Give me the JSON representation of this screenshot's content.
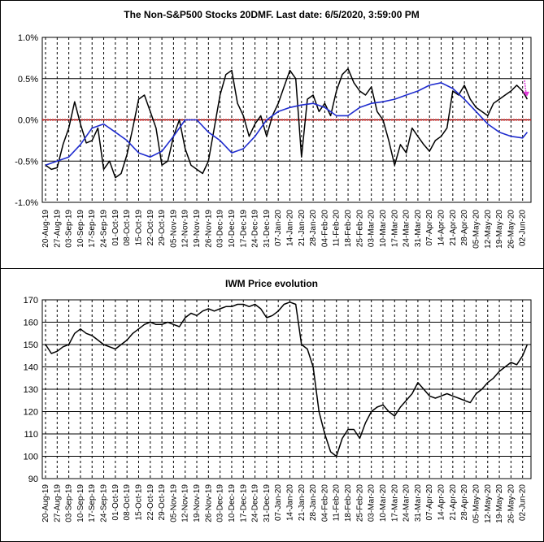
{
  "colors": {
    "background": "#ffffff",
    "frame": "#000000",
    "grid": "#000000",
    "series_black": "#000000",
    "series_blue": "#1f2ccf",
    "zero_line": "#d01818",
    "arrow": "#e03ad9"
  },
  "chart_data": [
    {
      "type": "line",
      "title": "The Non-S&P500 Stocks 20DMF. Last date: 6/5/2020, 3:59:00 PM",
      "xlabel": "",
      "ylabel": "",
      "ylim": [
        -1.0,
        1.0
      ],
      "y_ticks": [
        -1.0,
        -0.5,
        0.0,
        0.5,
        1.0
      ],
      "y_tick_labels": [
        "-1.0%",
        "-0.5%",
        "0.0%",
        "0.5%",
        "1.0%"
      ],
      "grid": {
        "horizontal": true,
        "vertical_dashed": true
      },
      "reference_line": {
        "y": 0.0,
        "style": "dotted-red"
      },
      "annotation": {
        "type": "arrow-down",
        "at_date": "05-Jun-20"
      },
      "x_tick_labels": [
        "20-Aug-19",
        "27-Aug-19",
        "03-Sep-19",
        "10-Sep-19",
        "17-Sep-19",
        "24-Sep-19",
        "01-Oct-19",
        "08-Oct-19",
        "15-Oct-19",
        "22-Oct-19",
        "29-Oct-19",
        "05-Nov-19",
        "12-Nov-19",
        "19-Nov-19",
        "26-Nov-19",
        "03-Dec-19",
        "10-Dec-19",
        "17-Dec-19",
        "24-Dec-19",
        "31-Dec-19",
        "07-Jan-20",
        "14-Jan-20",
        "21-Jan-20",
        "28-Jan-20",
        "04-Feb-20",
        "11-Feb-20",
        "18-Feb-20",
        "25-Feb-20",
        "03-Mar-20",
        "10-Mar-20",
        "17-Mar-20",
        "24-Mar-20",
        "31-Mar-20",
        "07-Apr-20",
        "14-Apr-20",
        "21-Apr-20",
        "28-Apr-20",
        "05-May-20",
        "12-May-20",
        "19-May-20",
        "26-May-20",
        "02-Jun-20"
      ],
      "series": [
        {
          "color": "black",
          "x": [
            0,
            0.5,
            1,
            1.5,
            2,
            2.5,
            3,
            3.5,
            4,
            4.5,
            5,
            5.5,
            6,
            6.5,
            7,
            7.5,
            8,
            8.5,
            9,
            9.5,
            10,
            10.5,
            11,
            11.5,
            12,
            12.5,
            13,
            13.5,
            14,
            14.5,
            15,
            15.5,
            16,
            16.5,
            17,
            17.5,
            18,
            18.5,
            19,
            19.5,
            20,
            20.5,
            21,
            21.5,
            22,
            22.5,
            23,
            23.5,
            24,
            24.5,
            25,
            25.5,
            26,
            26.5,
            27,
            27.5,
            28,
            28.5,
            29,
            29.5,
            30,
            30.5,
            31,
            31.5,
            32,
            32.5,
            33,
            33.5,
            34,
            34.5,
            35,
            35.5,
            36,
            36.5,
            37,
            37.5,
            38,
            38.5,
            39,
            39.5,
            40,
            40.5,
            41,
            41.4
          ],
          "values": [
            -0.55,
            -0.6,
            -0.58,
            -0.3,
            -0.1,
            0.22,
            -0.05,
            -0.28,
            -0.25,
            -0.1,
            -0.6,
            -0.5,
            -0.7,
            -0.65,
            -0.42,
            -0.1,
            0.25,
            0.3,
            0.1,
            -0.1,
            -0.55,
            -0.5,
            -0.2,
            0.0,
            -0.35,
            -0.55,
            -0.6,
            -0.65,
            -0.5,
            -0.1,
            0.3,
            0.55,
            0.6,
            0.2,
            0.05,
            -0.2,
            -0.05,
            0.05,
            -0.2,
            0.05,
            0.2,
            0.4,
            0.6,
            0.5,
            -0.45,
            0.25,
            0.3,
            0.1,
            0.2,
            0.05,
            0.35,
            0.55,
            0.62,
            0.45,
            0.35,
            0.3,
            0.4,
            0.1,
            0.0,
            -0.25,
            -0.55,
            -0.3,
            -0.4,
            -0.1,
            -0.2,
            -0.3,
            -0.38,
            -0.25,
            -0.2,
            -0.1,
            0.35,
            0.3,
            0.42,
            0.25,
            0.15,
            0.1,
            0.05,
            0.2,
            0.25,
            0.3,
            0.35,
            0.42,
            0.35,
            0.25
          ]
        },
        {
          "color": "blue",
          "x": [
            0,
            1,
            2,
            3,
            4,
            5,
            6,
            7,
            8,
            9,
            10,
            11,
            12,
            13,
            14,
            15,
            16,
            17,
            18,
            19,
            20,
            21,
            22,
            23,
            24,
            25,
            26,
            27,
            28,
            29,
            30,
            31,
            32,
            33,
            34,
            35,
            36,
            37,
            38,
            39,
            40,
            41,
            41.4
          ],
          "values": [
            -0.55,
            -0.5,
            -0.45,
            -0.3,
            -0.1,
            -0.05,
            -0.15,
            -0.25,
            -0.4,
            -0.45,
            -0.38,
            -0.2,
            0.0,
            0.0,
            -0.15,
            -0.25,
            -0.4,
            -0.35,
            -0.2,
            0.0,
            0.1,
            0.15,
            0.18,
            0.2,
            0.15,
            0.05,
            0.05,
            0.15,
            0.2,
            0.22,
            0.25,
            0.3,
            0.35,
            0.42,
            0.45,
            0.38,
            0.25,
            0.1,
            -0.05,
            -0.15,
            -0.2,
            -0.22,
            -0.15
          ]
        }
      ]
    },
    {
      "type": "line",
      "title": "IWM Price evolution",
      "xlabel": "",
      "ylabel": "",
      "ylim": [
        90,
        170
      ],
      "y_ticks": [
        90,
        100,
        110,
        120,
        130,
        140,
        150,
        160,
        170
      ],
      "y_tick_labels": [
        "90",
        "100",
        "110",
        "120",
        "130",
        "140",
        "150",
        "160",
        "170"
      ],
      "grid": {
        "horizontal": true,
        "vertical_dashed": true
      },
      "x_tick_labels": [
        "20-Aug-19",
        "27-Aug-19",
        "03-Sep-19",
        "10-Sep-19",
        "17-Sep-19",
        "24-Sep-19",
        "01-Oct-19",
        "08-Oct-19",
        "15-Oct-19",
        "22-Oct-19",
        "29-Oct-19",
        "05-Nov-19",
        "12-Nov-19",
        "19-Nov-19",
        "26-Nov-19",
        "03-Dec-19",
        "10-Dec-19",
        "17-Dec-19",
        "24-Dec-19",
        "31-Dec-19",
        "07-Jan-20",
        "14-Jan-20",
        "21-Jan-20",
        "28-Jan-20",
        "04-Feb-20",
        "11-Feb-20",
        "18-Feb-20",
        "25-Feb-20",
        "03-Mar-20",
        "10-Mar-20",
        "17-Mar-20",
        "24-Mar-20",
        "31-Mar-20",
        "07-Apr-20",
        "14-Apr-20",
        "21-Apr-20",
        "28-Apr-20",
        "05-May-20",
        "12-May-20",
        "19-May-20",
        "26-May-20",
        "02-Jun-20"
      ],
      "series": [
        {
          "color": "black",
          "x": [
            0,
            0.5,
            1,
            1.5,
            2,
            2.5,
            3,
            3.5,
            4,
            4.5,
            5,
            5.5,
            6,
            6.5,
            7,
            7.5,
            8,
            8.5,
            9,
            9.5,
            10,
            10.5,
            11,
            11.5,
            12,
            12.5,
            13,
            13.5,
            14,
            14.5,
            15,
            15.5,
            16,
            16.5,
            17,
            17.5,
            18,
            18.5,
            19,
            19.5,
            20,
            20.5,
            21,
            21.5,
            22,
            22.5,
            23,
            23.5,
            24,
            24.5,
            25,
            25.5,
            26,
            26.5,
            27,
            27.5,
            28,
            28.5,
            29,
            29.5,
            30,
            30.5,
            31,
            31.5,
            32,
            32.5,
            33,
            33.5,
            34,
            34.5,
            35,
            35.5,
            36,
            36.5,
            37,
            37.5,
            38,
            38.5,
            39,
            39.5,
            40,
            40.5,
            41,
            41.4
          ],
          "values": [
            150,
            146,
            147,
            149,
            150,
            155,
            157,
            155,
            154,
            152,
            150,
            149,
            148,
            150,
            152,
            155,
            157,
            159,
            160,
            159,
            159,
            160,
            159,
            158,
            162,
            164,
            163,
            165,
            166,
            165,
            166,
            167,
            167,
            168,
            168,
            167,
            168,
            166,
            162,
            163,
            165,
            168,
            169,
            168,
            150,
            148,
            140,
            120,
            110,
            102,
            100,
            108,
            112,
            112,
            108,
            115,
            120,
            122,
            123,
            120,
            118,
            122,
            125,
            128,
            133,
            130,
            127,
            126,
            127,
            128,
            127,
            126,
            125,
            124,
            128,
            130,
            133,
            135,
            138,
            140,
            142,
            141,
            145,
            150
          ]
        }
      ]
    }
  ]
}
